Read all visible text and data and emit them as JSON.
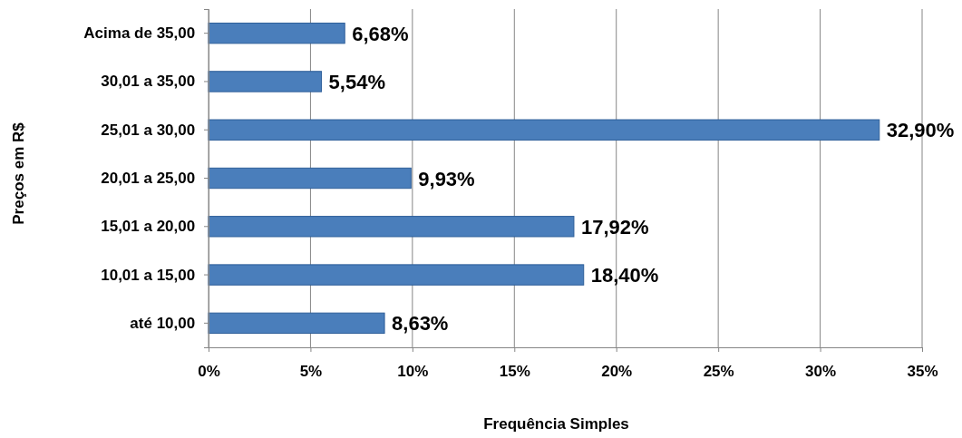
{
  "chart_data": {
    "type": "bar",
    "orientation": "horizontal",
    "xlabel": "Frequência Simples",
    "ylabel": "Preços em R$",
    "categories": [
      "Acima de 35,00",
      "30,01 a 35,00",
      "25,01 a 30,00",
      "20,01 a 25,00",
      "15,01 a 20,00",
      "10,01 a 15,00",
      "até 10,00"
    ],
    "values": [
      6.68,
      5.54,
      32.9,
      9.93,
      17.92,
      18.4,
      8.63
    ],
    "value_labels": [
      "6,68%",
      "5,54%",
      "32,90%",
      "9,93%",
      "17,92%",
      "18,40%",
      "8,63%"
    ],
    "color": "#4a7ebb",
    "xlim": [
      0,
      35
    ],
    "xticks": [
      {
        "value": 0,
        "label": "0%"
      },
      {
        "value": 5,
        "label": "5%"
      },
      {
        "value": 10,
        "label": "10%"
      },
      {
        "value": 15,
        "label": "15%"
      },
      {
        "value": 20,
        "label": "20%"
      },
      {
        "value": 25,
        "label": "25%"
      },
      {
        "value": 30,
        "label": "30%"
      },
      {
        "value": 35,
        "label": "35%"
      }
    ],
    "grid": "x"
  }
}
